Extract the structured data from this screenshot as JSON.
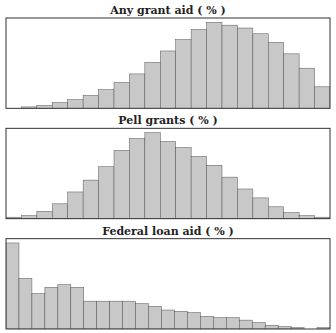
{
  "chart_data": [
    {
      "type": "bar",
      "title": "Any grant aid ( % )",
      "color": "#c8c8c8",
      "values": [
        0,
        1,
        2,
        4,
        6,
        9,
        13,
        18,
        24,
        32,
        40,
        48,
        55,
        60,
        58,
        56,
        52,
        46,
        38,
        28,
        15
      ],
      "ylim": [
        0,
        63
      ],
      "yticks": [],
      "grid": false,
      "tick_labels": false
    },
    {
      "type": "bar",
      "title": "Pell grants ( % )",
      "color": "#c8c8c8",
      "values": [
        1,
        2,
        5,
        10,
        18,
        26,
        35,
        46,
        54,
        58,
        52,
        48,
        42,
        36,
        28,
        20,
        14,
        8,
        4,
        2,
        1
      ],
      "ylim": [
        0,
        60.9
      ],
      "yticks": [],
      "grid": false,
      "tick_labels": false
    },
    {
      "type": "bar",
      "title": "Federal loan aid ( % )",
      "color": "#c8c8c8",
      "values": [
        68,
        40,
        28,
        33,
        35,
        33,
        22,
        22,
        22,
        22,
        20,
        18,
        15,
        14,
        13,
        10,
        9,
        9,
        7,
        5,
        3,
        2,
        1,
        0,
        1
      ],
      "ylim": [
        0,
        71.4
      ],
      "yticks": [],
      "grid": false,
      "tick_labels": false
    }
  ]
}
